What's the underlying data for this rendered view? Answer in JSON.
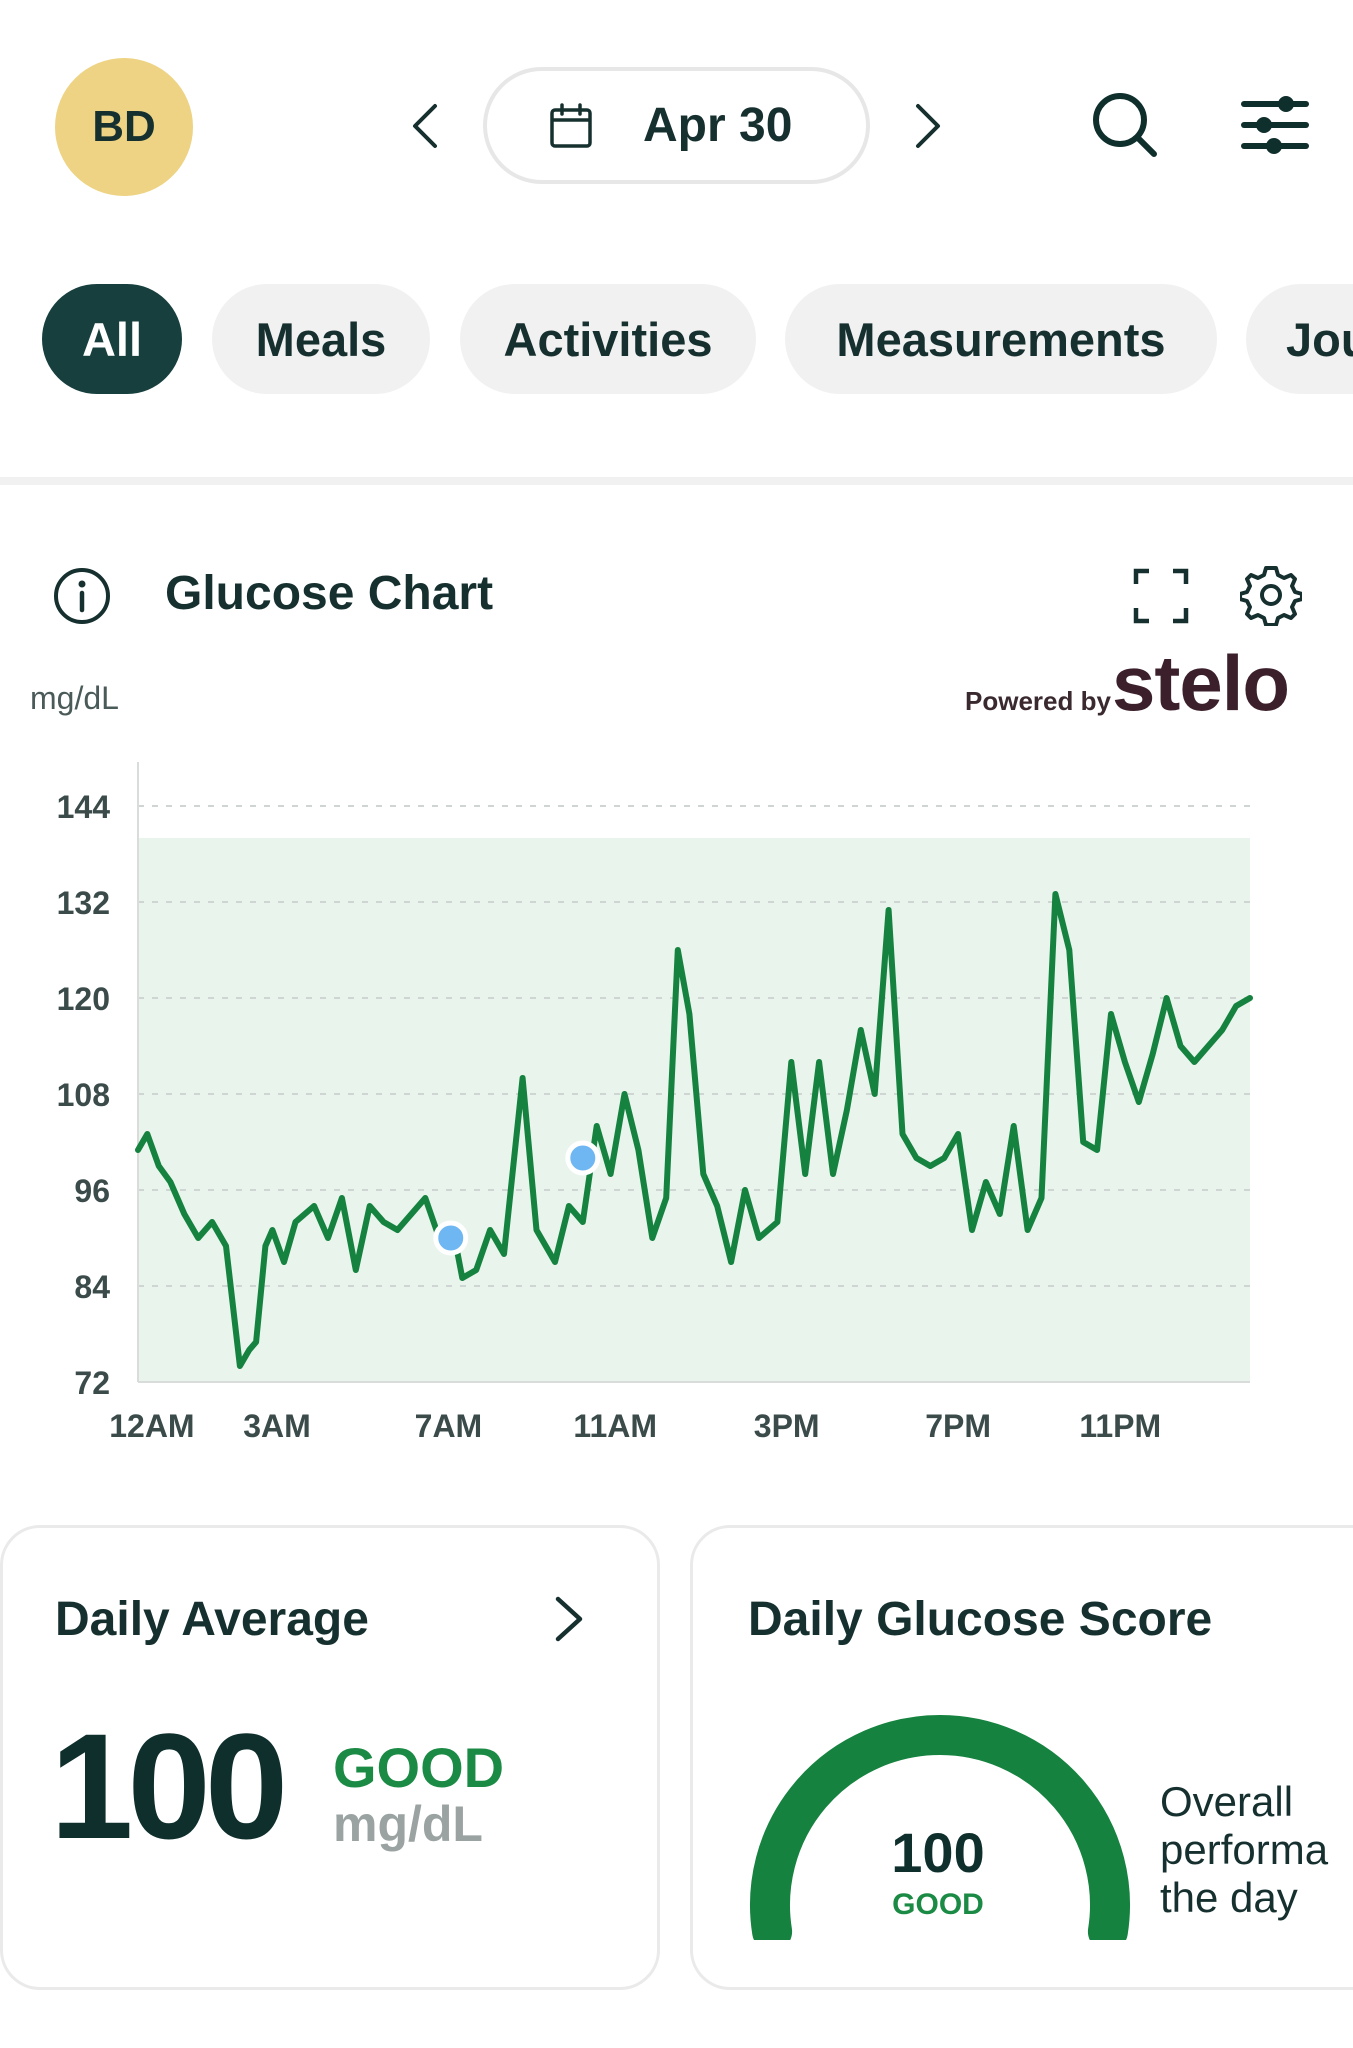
{
  "header": {
    "avatar_initials": "BD",
    "date": "Apr 30",
    "colors": {
      "avatar": "#edd383",
      "ink": "#16302f"
    }
  },
  "filters": {
    "items": [
      {
        "label": "All",
        "active": true
      },
      {
        "label": "Meals",
        "active": false
      },
      {
        "label": "Activities",
        "active": false
      },
      {
        "label": "Measurements",
        "active": false
      },
      {
        "label": "Journal",
        "active": false
      }
    ]
  },
  "glucose_chart": {
    "title": "Glucose Chart",
    "unit": "mg/dL",
    "powered_by": "Powered by",
    "brand": "stelo",
    "colors": {
      "line": "#15823f",
      "range_band": "#e8f4ec",
      "marker": "#6fb7f2"
    }
  },
  "chart_data": {
    "type": "line",
    "title": "Glucose Chart",
    "ylabel": "mg/dL",
    "ylim": [
      72,
      144
    ],
    "yticks": [
      "144",
      "132",
      "120",
      "108",
      "96",
      "84",
      "72"
    ],
    "xlim": [
      0,
      24
    ],
    "xticks": [
      {
        "label": "12AM",
        "hour": 0.3
      },
      {
        "label": "3AM",
        "hour": 3
      },
      {
        "label": "7AM",
        "hour": 6.7
      },
      {
        "label": "11AM",
        "hour": 10.3
      },
      {
        "label": "3PM",
        "hour": 14
      },
      {
        "label": "7PM",
        "hour": 17.7
      },
      {
        "label": "11PM",
        "hour": 21.2
      }
    ],
    "target_range": [
      72,
      140
    ],
    "grid": true,
    "series": [
      {
        "x": [
          0,
          0.2,
          0.45,
          0.7,
          1.0,
          1.3,
          1.6,
          1.9,
          2.2,
          2.4,
          2.55,
          2.75,
          2.9,
          3.15,
          3.4,
          3.8,
          4.1,
          4.4,
          4.7,
          5.0,
          5.3,
          5.6,
          5.9,
          6.2,
          6.5,
          6.8,
          7.0,
          7.3,
          7.6,
          7.9,
          8.3,
          8.6,
          9.0,
          9.3,
          9.6,
          9.9,
          10.2,
          10.5,
          10.8,
          11.1,
          11.4,
          11.65,
          11.9,
          12.2,
          12.5,
          12.8,
          13.1,
          13.4,
          13.8,
          14.1,
          14.4,
          14.7,
          15.0,
          15.3,
          15.6,
          15.9,
          16.2,
          16.5,
          16.8,
          17.1,
          17.4,
          17.7,
          18.0,
          18.3,
          18.6,
          18.9,
          19.2,
          19.5,
          19.8,
          20.1,
          20.4,
          20.7,
          21.0,
          21.3,
          21.6,
          21.9,
          22.2,
          22.5,
          22.8,
          23.1,
          23.4,
          23.7,
          24.0
        ],
        "y": [
          101,
          103,
          99,
          97,
          93,
          90,
          92,
          89,
          74,
          76,
          77,
          89,
          91,
          87,
          92,
          94,
          90,
          95,
          86,
          94,
          92,
          91,
          93,
          95,
          90,
          91,
          85,
          86,
          91,
          88,
          110,
          91,
          87,
          94,
          92,
          104,
          98,
          108,
          101,
          90,
          95,
          126,
          118,
          98,
          94,
          87,
          96,
          90,
          92,
          112,
          98,
          112,
          98,
          106,
          116,
          108,
          131,
          103,
          100,
          99,
          100,
          103,
          91,
          97,
          93,
          104,
          91,
          95,
          133,
          126,
          102,
          101,
          118,
          112,
          107,
          113,
          120,
          114,
          112,
          114,
          116,
          119,
          120
        ]
      }
    ],
    "markers": [
      {
        "x": 6.75,
        "y": 90
      },
      {
        "x": 9.6,
        "y": 100
      }
    ]
  },
  "daily_average": {
    "title": "Daily Average",
    "value": "100",
    "status": "GOOD",
    "unit": "mg/dL"
  },
  "daily_score": {
    "title": "Daily Glucose Score",
    "value": "100",
    "score_fraction": 1.0,
    "status": "GOOD",
    "description": [
      "Overall",
      "performa",
      "the day"
    ],
    "colors": {
      "arc": "#15823f"
    }
  }
}
